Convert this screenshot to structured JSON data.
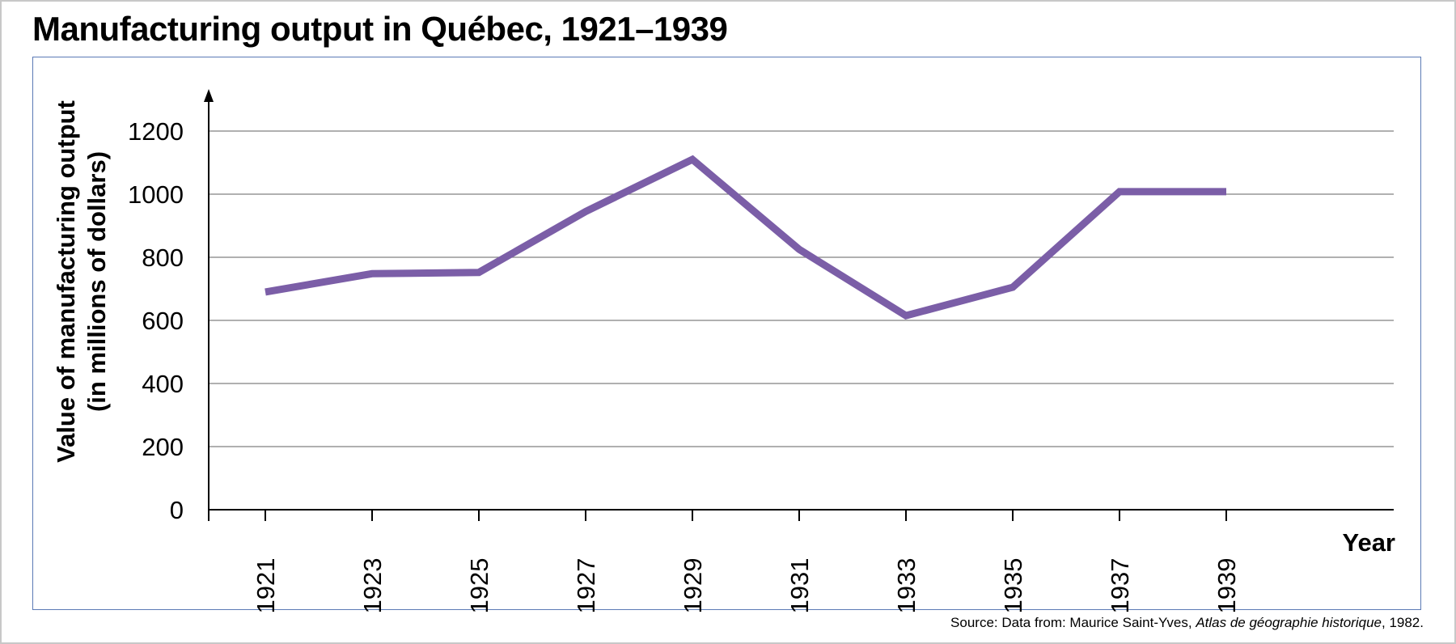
{
  "chart_data": {
    "type": "line",
    "title": "Manufacturing output in Québec, 1921–1939",
    "xlabel": "Year",
    "ylabel_line1": "Value of manufacturing output",
    "ylabel_line2": "(in millions of dollars)",
    "x": [
      1921,
      1923,
      1925,
      1927,
      1929,
      1931,
      1933,
      1935,
      1937,
      1939
    ],
    "x_tick_labels": [
      "1921",
      "1923",
      "1925",
      "1927",
      "1929",
      "1931",
      "1933",
      "1935",
      "1937",
      "1939"
    ],
    "series": [
      {
        "values": [
          690,
          748,
          752,
          945,
          1110,
          825,
          615,
          705,
          1008,
          1008
        ],
        "color": "#7b5ea7"
      }
    ],
    "yticks": [
      0,
      200,
      400,
      600,
      800,
      1000,
      1200
    ],
    "ylim": [
      0,
      1300
    ],
    "grid": true,
    "gridline_color": "#808080",
    "axis_color": "#000000"
  },
  "source": {
    "prefix": "Source: Data from: Maurice Saint-Yves, ",
    "work": "Atlas de géographie historique",
    "suffix": ", 1982."
  }
}
